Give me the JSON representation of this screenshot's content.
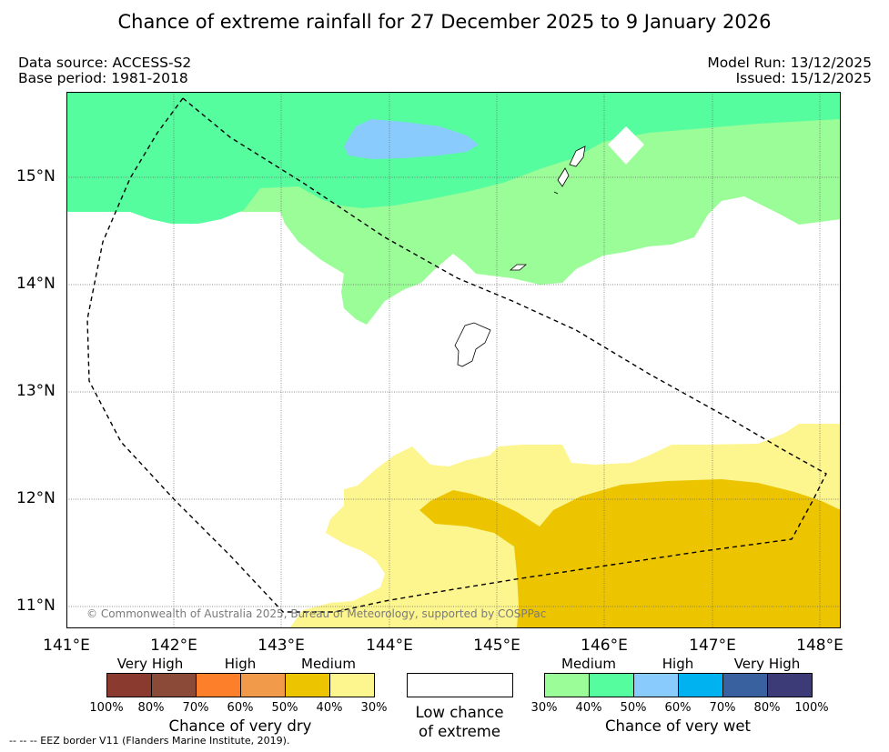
{
  "title": "Chance of extreme rainfall for 27 December 2025 to 9 January 2026",
  "data_source": "Data source: ACCESS-S2",
  "base_period": "Base period: 1981-2018",
  "model_run": "Model Run: 13/12/2025",
  "issued": "Issued: 15/12/2025",
  "copyright": "© Commonwealth of Australia 2025, Bureau of Meteorology, supported by COSPPac",
  "footnote": "--  --  -- EEZ border V11 (Flanders Marine Institute, 2019).",
  "lat_ticks": [
    "15°N",
    "14°N",
    "13°N",
    "12°N",
    "11°N"
  ],
  "lon_ticks": [
    "141°E",
    "142°E",
    "143°E",
    "144°E",
    "145°E",
    "146°E",
    "147°E",
    "148°E"
  ],
  "legend": {
    "dry": {
      "title": "Chance of very dry",
      "categories": [
        "Very High",
        "High",
        "Medium"
      ],
      "colors": [
        "#8b3a2f",
        "#8b4a38",
        "#fe7f2a",
        "#f09a4a",
        "#ecc500",
        "#fdf58d"
      ],
      "ticks": [
        "100%",
        "80%",
        "70%",
        "60%",
        "50%",
        "40%",
        "30%"
      ]
    },
    "low": {
      "title_line1": "Low chance",
      "title_line2": "of extreme",
      "color": "#ffffff"
    },
    "wet": {
      "title": "Chance of very wet",
      "categories": [
        "Medium",
        "High",
        "Very High"
      ],
      "colors": [
        "#9bfd98",
        "#56fd9f",
        "#89cbfd",
        "#00b2ef",
        "#3961a0",
        "#3d3a78"
      ],
      "ticks": [
        "30%",
        "40%",
        "50%",
        "60%",
        "70%",
        "80%",
        "100%"
      ]
    }
  },
  "map_colors": {
    "wet_medium_light": "#9bfd98",
    "wet_medium": "#56fd9f",
    "wet_high": "#89cbfd",
    "dry_medium_light": "#fdf58d",
    "dry_medium": "#ecc500"
  }
}
